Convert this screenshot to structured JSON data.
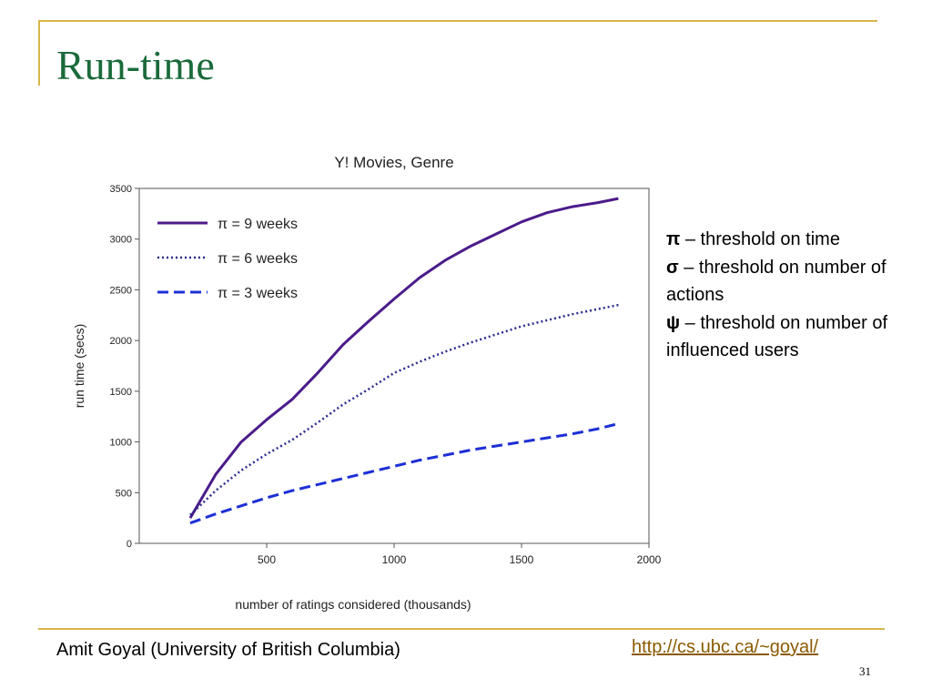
{
  "slide": {
    "title": "Run-time",
    "notes": [
      {
        "symbol": "π",
        "text": " – threshold on time"
      },
      {
        "symbol": "σ",
        "text": " – threshold on number of actions"
      },
      {
        "symbol": "ψ",
        "text": " – threshold on number of influenced users"
      }
    ],
    "footer_author": "Amit Goyal (University of British Columbia)",
    "footer_link": "http://cs.ubc.ca/~goyal/",
    "page_number": "31"
  },
  "colors": {
    "title": "#1a6b3a",
    "rule": "#d9b64a",
    "link": "#8a5a00",
    "series_9w": "#4b1b8a",
    "series_6w": "#2a2a8e",
    "series_3w": "#1c2fd6"
  },
  "chart_data": {
    "type": "line",
    "title": "Y! Movies, Genre",
    "xlabel": "number of ratings considered (thousands)",
    "ylabel": "run time (secs)",
    "xlim": [
      0,
      2000
    ],
    "ylim": [
      0,
      3500
    ],
    "xticks": [
      500,
      1000,
      1500,
      2000
    ],
    "yticks": [
      0,
      500,
      1000,
      1500,
      2000,
      2500,
      3000,
      3500
    ],
    "grid": false,
    "legend_position": "top-left",
    "series": [
      {
        "name": "π = 9 weeks",
        "style": "solid",
        "color": "#4b1b8a",
        "x": [
          200,
          300,
          400,
          500,
          600,
          700,
          800,
          900,
          1000,
          1100,
          1200,
          1300,
          1400,
          1500,
          1600,
          1700,
          1800,
          1880
        ],
        "y": [
          250,
          680,
          1000,
          1220,
          1420,
          1680,
          1960,
          2190,
          2410,
          2620,
          2790,
          2930,
          3050,
          3170,
          3260,
          3320,
          3360,
          3400
        ]
      },
      {
        "name": "π = 6 weeks",
        "style": "dotted",
        "color": "#2a2a8e",
        "x": [
          200,
          300,
          400,
          500,
          600,
          700,
          800,
          900,
          1000,
          1100,
          1200,
          1300,
          1400,
          1500,
          1600,
          1700,
          1800,
          1880
        ],
        "y": [
          280,
          520,
          720,
          880,
          1020,
          1190,
          1370,
          1520,
          1680,
          1790,
          1890,
          1980,
          2060,
          2140,
          2200,
          2260,
          2310,
          2350
        ]
      },
      {
        "name": "π = 3 weeks",
        "style": "dashed",
        "color": "#1c2fd6",
        "x": [
          200,
          300,
          400,
          500,
          600,
          700,
          800,
          900,
          1000,
          1100,
          1200,
          1300,
          1400,
          1500,
          1600,
          1700,
          1800,
          1880
        ],
        "y": [
          200,
          290,
          370,
          450,
          520,
          580,
          640,
          700,
          760,
          820,
          870,
          920,
          960,
          1000,
          1040,
          1080,
          1130,
          1180
        ]
      }
    ]
  }
}
